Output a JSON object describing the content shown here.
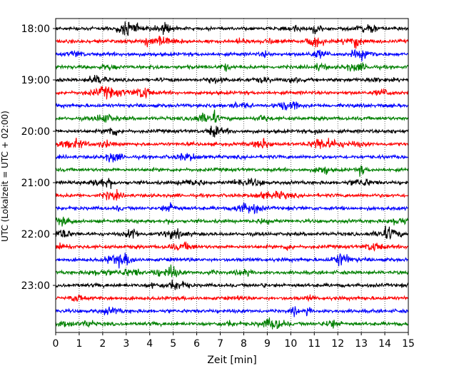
{
  "chart_data": {
    "type": "line",
    "title": "",
    "xlabel": "Zeit  [min]",
    "ylabel": "UTC (Lokalzeit = UTC + 02:00)",
    "xlim": [
      0,
      15
    ],
    "x_ticks": [
      0,
      1,
      2,
      3,
      4,
      5,
      6,
      7,
      8,
      9,
      10,
      11,
      12,
      13,
      14,
      15
    ],
    "y_tick_labels": [
      "18:00",
      "19:00",
      "20:00",
      "21:00",
      "22:00",
      "23:00"
    ],
    "trace_start_times": [
      "18:00",
      "18:15",
      "18:30",
      "18:45",
      "19:00",
      "19:15",
      "19:30",
      "19:45",
      "20:00",
      "20:15",
      "20:30",
      "20:45",
      "21:00",
      "21:15",
      "21:30",
      "21:45",
      "22:00",
      "22:15",
      "22:30",
      "22:45",
      "23:00",
      "23:15",
      "23:30",
      "23:45"
    ],
    "trace_colors": [
      "#000000",
      "#ff0000",
      "#0000ff",
      "#008000"
    ],
    "trace_minutes": 15,
    "vertical_grid": "dotted",
    "legend": "none"
  }
}
